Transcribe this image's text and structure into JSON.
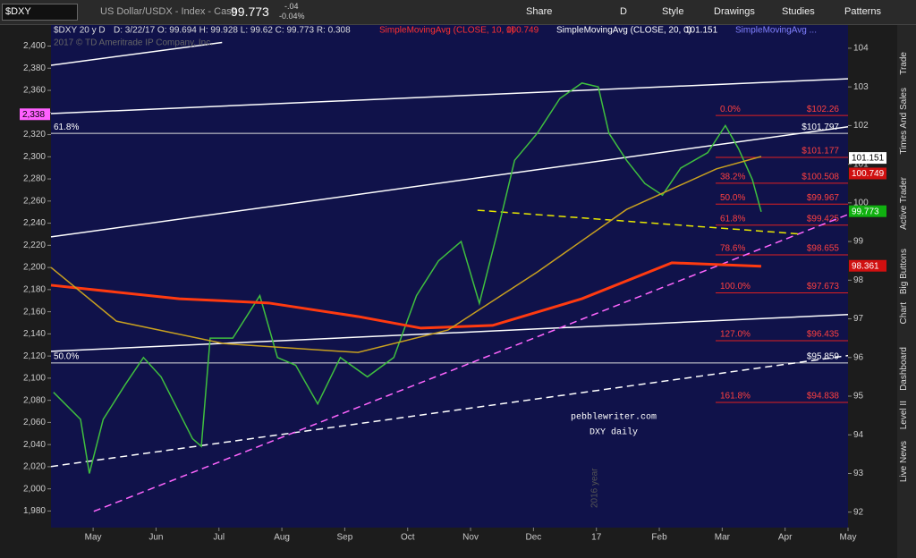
{
  "toolbar": {
    "symbol": "$DXY",
    "description": "US Dollar/USDX - Index - Cash",
    "last": "99.773",
    "change": "-.04",
    "change_pct": "-0.04%",
    "buttons": [
      "Share",
      "D",
      "Style",
      "Drawings",
      "Studies",
      "Patterns"
    ]
  },
  "side_tabs": [
    "Trade",
    "Times And Sales",
    "Active Trader",
    "Big Buttons",
    "Chart",
    "Dashboard",
    "Level II",
    "Live News"
  ],
  "chart_data": {
    "type": "line",
    "title": "$DXY 20 y D",
    "ohlc": "D: 3/22/17  O: 99.694  H: 99.928  L: 99.62  C: 99.773  R: 0.308",
    "copyright": "2017 © TD Ameritrade IP Company, Inc.",
    "studies": [
      {
        "name": "SimpleMovingAvg (CLOSE, 10, 0)",
        "value": "100.749",
        "color": "#ff3030"
      },
      {
        "name": "SimpleMovingAvg (CLOSE, 20, 0)",
        "value": "101.151",
        "color": "#ffffff"
      },
      {
        "name": "SimpleMovingAvg ...",
        "color": "#8080ff"
      }
    ],
    "annotations": [
      "pebblewriter.com",
      "DXY daily",
      "2016 year"
    ],
    "xlim": [
      -0.67,
      12
    ],
    "xticks": [
      {
        "value": 0,
        "label": "May"
      },
      {
        "value": 1,
        "label": "Jun"
      },
      {
        "value": 2,
        "label": "Jul"
      },
      {
        "value": 3,
        "label": "Aug"
      },
      {
        "value": 4,
        "label": "Sep"
      },
      {
        "value": 5,
        "label": "Oct"
      },
      {
        "value": 6,
        "label": "Nov"
      },
      {
        "value": 7,
        "label": "Dec"
      },
      {
        "value": 8,
        "label": "17"
      },
      {
        "value": 9,
        "label": "Feb"
      },
      {
        "value": 10,
        "label": "Mar"
      },
      {
        "value": 11,
        "label": "Apr"
      },
      {
        "value": 12,
        "label": "May"
      }
    ],
    "ylim": [
      91.6,
      104.6
    ],
    "yticks": [
      92,
      93,
      94,
      95,
      96,
      97,
      98,
      99,
      100,
      101,
      102,
      103,
      104
    ],
    "y2lim": [
      1965,
      2419
    ],
    "y2ticks": [
      {
        "value": 1980,
        "label": "1,980"
      },
      {
        "value": 2000,
        "label": "2,000"
      },
      {
        "value": 2020,
        "label": "2,020"
      },
      {
        "value": 2040,
        "label": "2,040"
      },
      {
        "value": 2060,
        "label": "2,060"
      },
      {
        "value": 2080,
        "label": "2,080"
      },
      {
        "value": 2100,
        "label": "2,100"
      },
      {
        "value": 2120,
        "label": "2,120"
      },
      {
        "value": 2140,
        "label": "2,140"
      },
      {
        "value": 2160,
        "label": "2,160"
      },
      {
        "value": 2180,
        "label": "2,180"
      },
      {
        "value": 2200,
        "label": "2,200"
      },
      {
        "value": 2220,
        "label": "2,220"
      },
      {
        "value": 2240,
        "label": "2,240"
      },
      {
        "value": 2260,
        "label": "2,260"
      },
      {
        "value": 2280,
        "label": "2,280"
      },
      {
        "value": 2300,
        "label": "2,300"
      },
      {
        "value": 2320,
        "label": "2,320"
      },
      {
        "value": 2340,
        "label": "2,340"
      },
      {
        "value": 2360,
        "label": "2,360"
      },
      {
        "value": 2380,
        "label": "2,380"
      },
      {
        "value": 2400,
        "label": "2,400"
      }
    ],
    "series": [
      {
        "name": "DXY",
        "color": "#3fbf3f",
        "x": [
          -0.63,
          -0.2,
          -0.06,
          0.16,
          0.51,
          0.8,
          1.08,
          1.58,
          1.72,
          1.86,
          2.22,
          2.65,
          2.93,
          3.22,
          3.57,
          3.93,
          4.36,
          4.78,
          5.14,
          5.49,
          5.85,
          6.14,
          6.42,
          6.7,
          7.06,
          7.42,
          7.77,
          8.03,
          8.2,
          8.48,
          8.77,
          9.05,
          9.34,
          9.77,
          10.05,
          10.26,
          10.48,
          10.62
        ],
        "values": [
          95.1,
          94.4,
          93.0,
          94.4,
          95.3,
          96.0,
          95.5,
          93.9,
          93.7,
          96.5,
          96.5,
          97.6,
          96.0,
          95.8,
          94.8,
          96.0,
          95.5,
          96.0,
          97.6,
          98.5,
          99.0,
          97.4,
          99.2,
          101.1,
          101.8,
          102.7,
          103.1,
          103.0,
          101.8,
          101.1,
          100.5,
          100.2,
          100.9,
          101.3,
          102.0,
          101.4,
          100.6,
          99.77
        ]
      },
      {
        "name": "SMA 200",
        "color": "#ff3a10",
        "width": 3,
        "x": [
          -0.67,
          1.37,
          2.79,
          4.21,
          5.21,
          6.35,
          7.77,
          9.2,
          10.62
        ],
        "values": [
          97.87,
          97.52,
          97.41,
          97.06,
          96.76,
          96.83,
          97.52,
          98.45,
          98.361
        ]
      },
      {
        "name": "SMA 100",
        "color": "#c8a020",
        "width": 1.5,
        "x": [
          -0.67,
          0.37,
          2.08,
          4.21,
          5.64,
          7.06,
          8.48,
          9.91,
          10.62
        ],
        "values": [
          98.33,
          96.94,
          96.36,
          96.13,
          96.71,
          98.21,
          99.83,
          100.88,
          101.2
        ]
      }
    ],
    "trendlines": [
      {
        "x": [
          -0.67,
          12
        ],
        "values": [
          102.31,
          103.21
        ],
        "color": "#ffffff",
        "dash": false
      },
      {
        "x": [
          -0.67,
          2.05
        ],
        "values": [
          103.56,
          104.15
        ],
        "color": "#ffffff",
        "dash": false
      },
      {
        "x": [
          -0.67,
          12
        ],
        "values": [
          99.12,
          101.97
        ],
        "color": "#ffffff",
        "dash": false
      },
      {
        "x": [
          -0.67,
          12
        ],
        "values": [
          96.16,
          97.11
        ],
        "color": "#ffffff",
        "dash": false
      },
      {
        "x": [
          -0.67,
          12
        ],
        "values": [
          93.18,
          96.05
        ],
        "color": "#ffffff",
        "dash": true
      },
      {
        "x": [
          0.01,
          12
        ],
        "values": [
          92.02,
          99.7
        ],
        "color": "#ff66ff",
        "dash": true
      },
      {
        "x": [
          6.11,
          11.2
        ],
        "values": [
          99.81,
          99.2
        ],
        "color": "#e8e800",
        "dash": true
      }
    ],
    "fib_lines": [
      {
        "pct": "61.8%",
        "value": 101.797,
        "label": "$101.797"
      },
      {
        "pct": "50.0%",
        "value": 95.859,
        "label": "$95.859"
      }
    ],
    "fib_levels": [
      {
        "pct": "0.0%",
        "value": 102.26,
        "label": "$102.26"
      },
      {
        "value": 101.177,
        "label": "$101.177"
      },
      {
        "pct": "38.2%",
        "value": 100.508,
        "label": "$100.508"
      },
      {
        "pct": "50.0%",
        "value": 99.967,
        "label": "$99.967"
      },
      {
        "pct": "61.8%",
        "value": 99.425,
        "label": "$99.425"
      },
      {
        "pct": "78.6%",
        "value": 98.655,
        "label": "$98.655"
      },
      {
        "pct": "100.0%",
        "value": 97.673,
        "label": "$97.673"
      },
      {
        "pct": "127.0%",
        "value": 96.435,
        "label": "$96.435"
      },
      {
        "pct": "161.8%",
        "value": 94.838,
        "label": "$94.838"
      }
    ],
    "price_tags": [
      {
        "value": 101.151,
        "color": "#ffffff"
      },
      {
        "value": 100.749,
        "color": "#d01010"
      },
      {
        "value": 99.773,
        "color": "#10b010"
      },
      {
        "value": 98.361,
        "color": "#d01010"
      }
    ],
    "left_tag": {
      "value": 2338,
      "label": "2,338",
      "color": "#ff60ff"
    }
  }
}
